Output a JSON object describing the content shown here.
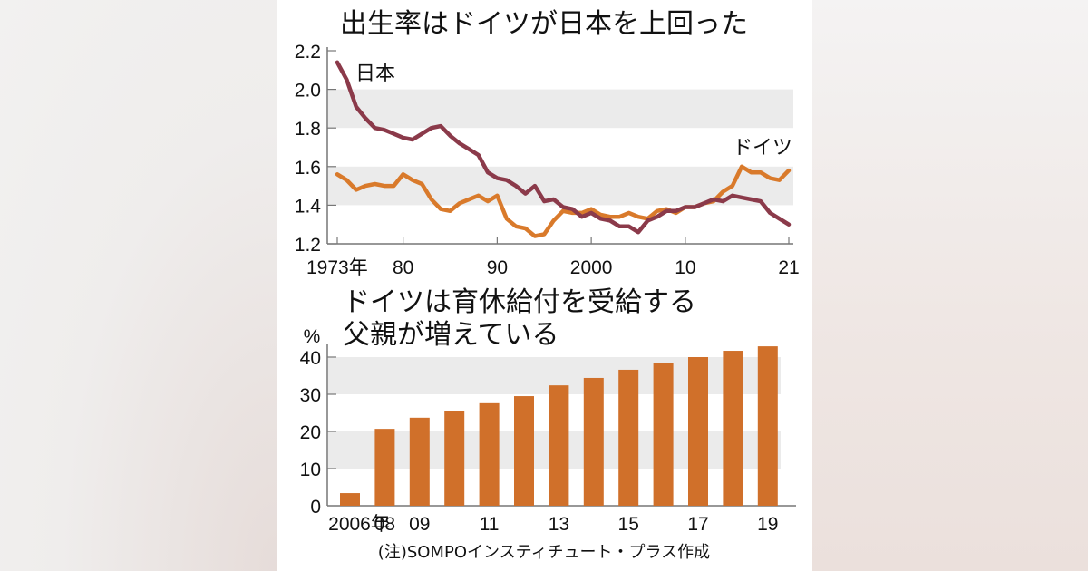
{
  "chart_data": [
    {
      "type": "line",
      "title": "出生率はドイツが日本を上回った",
      "xlabel": "",
      "ylabel": "",
      "ylim": [
        1.2,
        2.2
      ],
      "yticks": [
        "2.2",
        "2.0",
        "1.8",
        "1.6",
        "1.4",
        "1.2"
      ],
      "ytick_values": [
        2.2,
        2.0,
        1.8,
        1.6,
        1.4,
        1.2
      ],
      "xlim": [
        1973,
        2021
      ],
      "xticks": [
        {
          "value": 1973,
          "label": "1973年"
        },
        {
          "value": 1980,
          "label": "80"
        },
        {
          "value": 1990,
          "label": "90"
        },
        {
          "value": 2000,
          "label": "2000"
        },
        {
          "value": 2010,
          "label": "10"
        },
        {
          "value": 2021,
          "label": "21"
        }
      ],
      "bands": [
        [
          1.8,
          2.0
        ],
        [
          1.4,
          1.6
        ]
      ],
      "x": [
        1973,
        1974,
        1975,
        1976,
        1977,
        1978,
        1979,
        1980,
        1981,
        1982,
        1983,
        1984,
        1985,
        1986,
        1987,
        1988,
        1989,
        1990,
        1991,
        1992,
        1993,
        1994,
        1995,
        1996,
        1997,
        1998,
        1999,
        2000,
        2001,
        2002,
        2003,
        2004,
        2005,
        2006,
        2007,
        2008,
        2009,
        2010,
        2011,
        2012,
        2013,
        2014,
        2015,
        2016,
        2017,
        2018,
        2019,
        2020,
        2021
      ],
      "series": [
        {
          "name": "日本",
          "color": "#8b3a4a",
          "values": [
            2.14,
            2.05,
            1.91,
            1.85,
            1.8,
            1.79,
            1.77,
            1.75,
            1.74,
            1.77,
            1.8,
            1.81,
            1.76,
            1.72,
            1.69,
            1.66,
            1.57,
            1.54,
            1.53,
            1.5,
            1.46,
            1.5,
            1.42,
            1.43,
            1.39,
            1.38,
            1.34,
            1.36,
            1.33,
            1.32,
            1.29,
            1.29,
            1.26,
            1.32,
            1.34,
            1.37,
            1.37,
            1.39,
            1.39,
            1.41,
            1.43,
            1.42,
            1.45,
            1.44,
            1.43,
            1.42,
            1.36,
            1.33,
            1.3
          ]
        },
        {
          "name": "ドイツ",
          "color": "#d97a2b",
          "values": [
            1.56,
            1.53,
            1.48,
            1.5,
            1.51,
            1.5,
            1.5,
            1.56,
            1.53,
            1.51,
            1.43,
            1.38,
            1.37,
            1.41,
            1.43,
            1.45,
            1.42,
            1.45,
            1.33,
            1.29,
            1.28,
            1.24,
            1.25,
            1.32,
            1.37,
            1.36,
            1.36,
            1.38,
            1.35,
            1.34,
            1.34,
            1.36,
            1.34,
            1.33,
            1.37,
            1.38,
            1.36,
            1.39,
            1.39,
            1.41,
            1.42,
            1.47,
            1.5,
            1.6,
            1.57,
            1.57,
            1.54,
            1.53,
            1.58
          ]
        }
      ],
      "annotations": [
        "日本",
        "ドイツ"
      ],
      "legend": "inline labels"
    },
    {
      "type": "bar",
      "title": "ドイツは育休給付を受給する父親が増えている",
      "title_lines": [
        "ドイツは育休給付を受給する",
        "父親が増えている"
      ],
      "ylabel": "%",
      "ylim": [
        0,
        40
      ],
      "yticks": [
        "40",
        "30",
        "20",
        "10",
        "0"
      ],
      "ytick_values": [
        40,
        30,
        20,
        10,
        0
      ],
      "bands": [
        [
          30,
          40
        ],
        [
          10,
          20
        ]
      ],
      "categories": [
        "2006",
        "2008",
        "2009",
        "2010",
        "2011",
        "2012",
        "2013",
        "2014",
        "2015",
        "2016",
        "2017",
        "2018",
        "2019"
      ],
      "xtick_labels": [
        "2006年",
        "08",
        "09",
        "",
        "11",
        "",
        "13",
        "",
        "15",
        "",
        "17",
        "",
        "19"
      ],
      "values": [
        3.4,
        20.7,
        23.7,
        25.6,
        27.6,
        29.5,
        32.4,
        34.4,
        36.6,
        38.3,
        40.0,
        41.7,
        42.9
      ],
      "color": "#d0702a",
      "note": "(注)SOMPOインスティチュート・プラス作成"
    }
  ]
}
